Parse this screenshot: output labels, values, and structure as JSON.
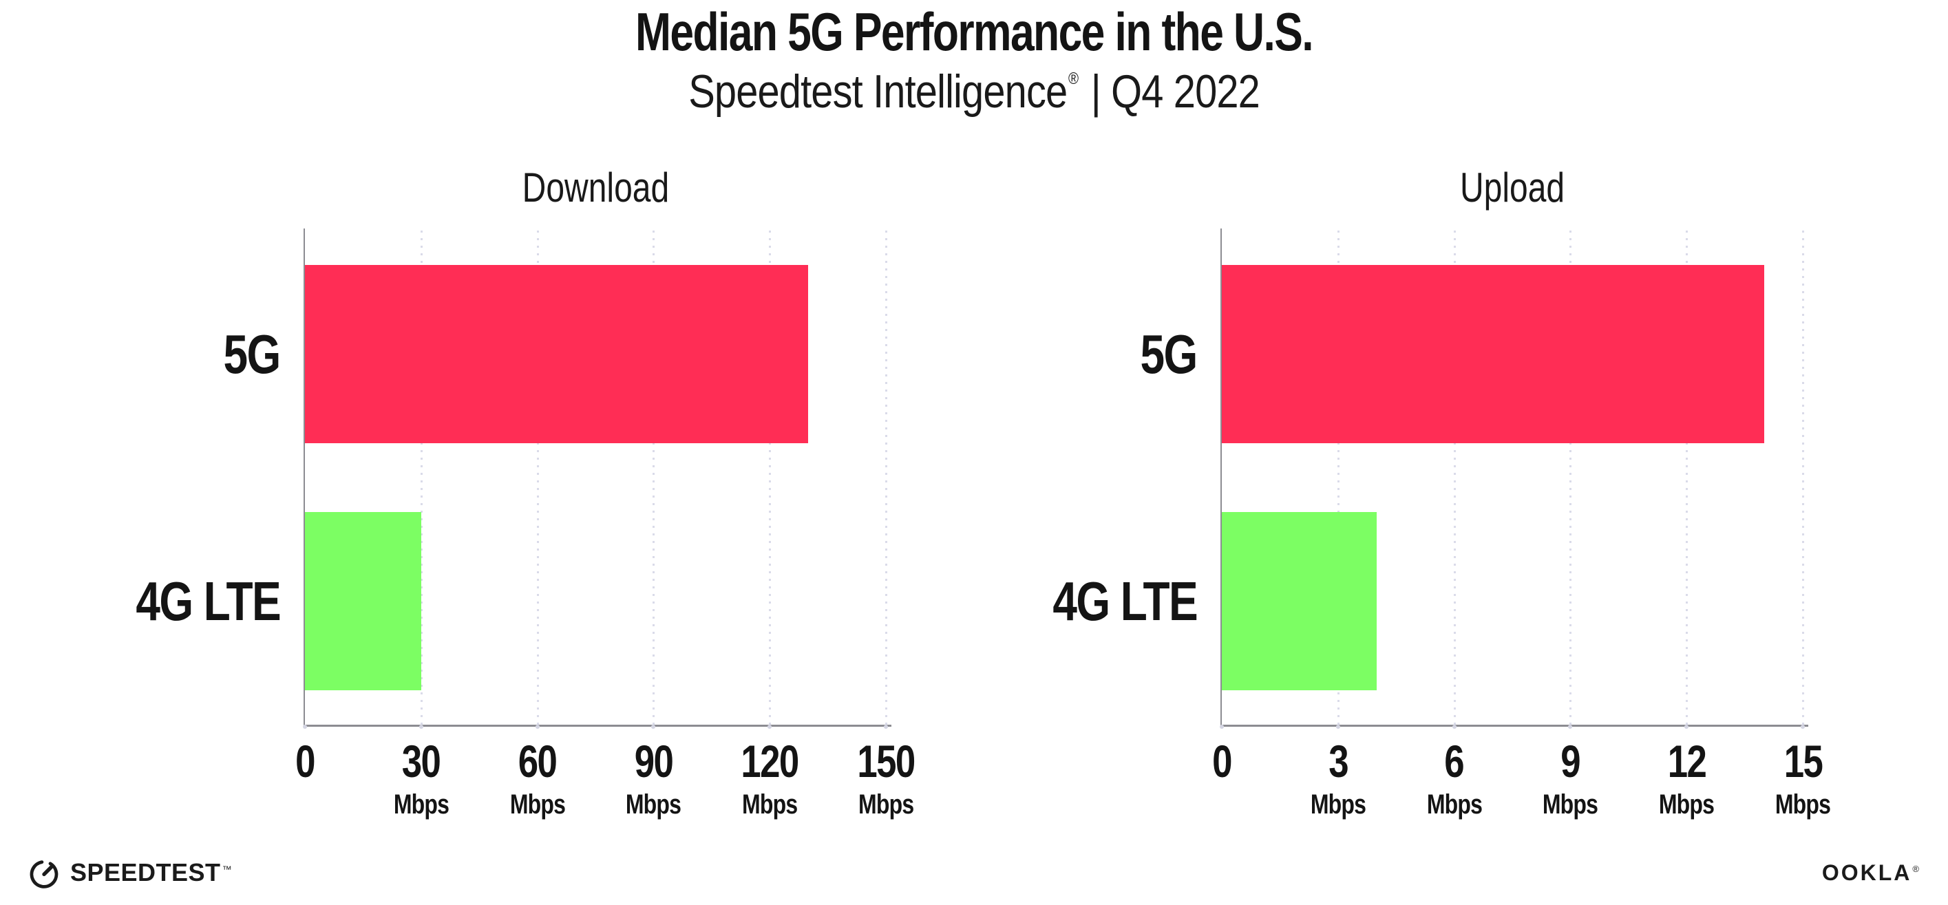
{
  "header": {
    "title": "Median 5G Performance in the U.S.",
    "subtitle_brand": "Speedtest Intelligence",
    "subtitle_trademark": "®",
    "subtitle_rest": " | Q4 2022"
  },
  "footer": {
    "speedtest_text": "SPEEDTEST",
    "speedtest_trademark": "™",
    "ookla_text": "OOKLA",
    "ookla_trademark": "®"
  },
  "colors": {
    "bar_5g": "#FF2D55",
    "bar_4g_lte": "#7CFE63",
    "axis": "#8C8C92",
    "gridline_dots": "#DADBE9",
    "tick_dots": "#D5D6E3",
    "text": "#141414"
  },
  "chart_data": [
    {
      "type": "bar",
      "orientation": "horizontal",
      "title": "Download",
      "categories": [
        "5G",
        "4G LTE"
      ],
      "values": [
        130,
        30
      ],
      "bar_colors": [
        "#FF2D55",
        "#7CFE63"
      ],
      "xlim": [
        0,
        150
      ],
      "xticks": [
        0,
        30,
        60,
        90,
        120,
        150
      ],
      "tick_unit": "Mbps",
      "xlabel": "",
      "ylabel": "",
      "grid": "dotted-vertical",
      "legend": "none"
    },
    {
      "type": "bar",
      "orientation": "horizontal",
      "title": "Upload",
      "categories": [
        "5G",
        "4G LTE"
      ],
      "values": [
        14,
        4
      ],
      "bar_colors": [
        "#FF2D55",
        "#7CFE63"
      ],
      "xlim": [
        0,
        15
      ],
      "xticks": [
        0,
        3,
        6,
        9,
        12,
        15
      ],
      "tick_unit": "Mbps",
      "xlabel": "",
      "ylabel": "",
      "grid": "dotted-vertical",
      "legend": "none"
    }
  ]
}
